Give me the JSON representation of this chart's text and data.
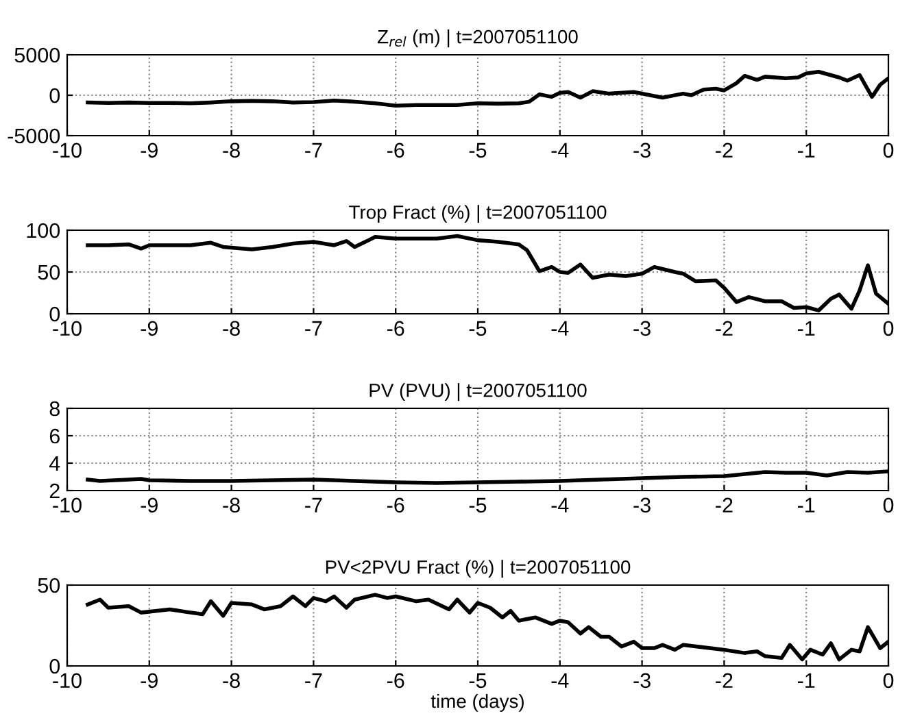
{
  "chart_data": [
    {
      "type": "line",
      "title": "Z$_{rel}$ (m) | t=2007051100",
      "xlim": [
        -10,
        0
      ],
      "xticks": [
        -10,
        -9,
        -8,
        -7,
        -6,
        -5,
        -4,
        -3,
        -2,
        -1,
        0
      ],
      "ylim": [
        -5000,
        5000
      ],
      "yticks": [
        -5000,
        0,
        5000
      ],
      "grid": true,
      "line_style": "solid",
      "series": [
        {
          "color": "#000000",
          "x": [
            -9.75,
            -9.5,
            -9.25,
            -9,
            -8.75,
            -8.5,
            -8.25,
            -8,
            -7.75,
            -7.5,
            -7.25,
            -7,
            -6.75,
            -6.5,
            -6.25,
            -6,
            -5.75,
            -5.5,
            -5.25,
            -5,
            -4.75,
            -4.5,
            -4.375,
            -4.25,
            -4.1,
            -4,
            -3.9,
            -3.75,
            -3.6,
            -3.4,
            -3.1,
            -2.9,
            -2.75,
            -2.5,
            -2.4,
            -2.25,
            -2.1,
            -2,
            -1.85,
            -1.75,
            -1.6,
            -1.5,
            -1.25,
            -1.1,
            -1,
            -0.85,
            -0.6,
            -0.5,
            -0.35,
            -0.2,
            -0.1,
            0
          ],
          "values": [
            -900,
            -950,
            -900,
            -950,
            -950,
            -1000,
            -900,
            -750,
            -700,
            -750,
            -900,
            -850,
            -650,
            -800,
            -1000,
            -1300,
            -1200,
            -1200,
            -1200,
            -1000,
            -1050,
            -1000,
            -800,
            100,
            -200,
            300,
            400,
            -300,
            500,
            200,
            400,
            0,
            -300,
            200,
            0,
            700,
            800,
            600,
            1500,
            2400,
            1900,
            2300,
            2100,
            2200,
            2700,
            2900,
            2200,
            1800,
            2500,
            -200,
            1300,
            2100
          ]
        }
      ]
    },
    {
      "type": "line",
      "title": "Trop Fract (%) | t=2007051100",
      "xlim": [
        -10,
        0
      ],
      "xticks": [
        -10,
        -9,
        -8,
        -7,
        -6,
        -5,
        -4,
        -3,
        -2,
        -1,
        0
      ],
      "ylim": [
        0,
        100
      ],
      "yticks": [
        0,
        50,
        100
      ],
      "grid": true,
      "line_style": "solid",
      "series": [
        {
          "color": "#000000",
          "x": [
            -9.75,
            -9.5,
            -9.25,
            -9.1,
            -9,
            -8.5,
            -8.25,
            -8.1,
            -7.75,
            -7.5,
            -7.25,
            -7,
            -6.75,
            -6.6,
            -6.5,
            -6.35,
            -6.25,
            -6,
            -5.5,
            -5.25,
            -5,
            -4.75,
            -4.5,
            -4.4,
            -4.25,
            -4.1,
            -4,
            -3.9,
            -3.75,
            -3.6,
            -3.4,
            -3.2,
            -3,
            -2.85,
            -2.6,
            -2.5,
            -2.35,
            -2.1,
            -2,
            -1.85,
            -1.7,
            -1.5,
            -1.3,
            -1.15,
            -1,
            -0.85,
            -0.7,
            -0.6,
            -0.45,
            -0.35,
            -0.25,
            -0.15,
            0
          ],
          "values": [
            82,
            82,
            83,
            78,
            82,
            82,
            85,
            80,
            77,
            80,
            84,
            86,
            82,
            87,
            80,
            87,
            92,
            90,
            90,
            93,
            88,
            86,
            83,
            76,
            51,
            56,
            50,
            49,
            59,
            43,
            47,
            45,
            48,
            56,
            50,
            48,
            39,
            40,
            31,
            14,
            20,
            15,
            15,
            7,
            8,
            4,
            18,
            23,
            6,
            28,
            58,
            24,
            12
          ]
        }
      ]
    },
    {
      "type": "line",
      "title": "PV (PVU) | t=2007051100",
      "xlim": [
        -10,
        0
      ],
      "xticks": [
        -10,
        -9,
        -8,
        -7,
        -6,
        -5,
        -4,
        -3,
        -2,
        -1,
        0
      ],
      "ylim": [
        2,
        8
      ],
      "yticks": [
        2,
        4,
        6,
        8
      ],
      "grid": true,
      "line_style": "solid",
      "series": [
        {
          "color": "#000000",
          "x": [
            -9.75,
            -9.6,
            -9.25,
            -9.1,
            -9,
            -8.5,
            -8,
            -7.5,
            -7,
            -6.5,
            -6,
            -5.5,
            -5,
            -4.5,
            -4,
            -3.5,
            -3,
            -2.5,
            -2,
            -1.75,
            -1.5,
            -1.25,
            -1,
            -0.75,
            -0.5,
            -0.25,
            0
          ],
          "values": [
            2.8,
            2.7,
            2.8,
            2.85,
            2.75,
            2.7,
            2.7,
            2.75,
            2.8,
            2.7,
            2.6,
            2.55,
            2.6,
            2.65,
            2.7,
            2.8,
            2.9,
            3.0,
            3.05,
            3.2,
            3.35,
            3.3,
            3.3,
            3.1,
            3.35,
            3.3,
            3.4
          ]
        }
      ]
    },
    {
      "type": "line",
      "title": "PV<2PVU Fract (%) | t=2007051100",
      "xlabel": "time (days)",
      "xlim": [
        -10,
        0
      ],
      "xticks": [
        -10,
        -9,
        -8,
        -7,
        -6,
        -5,
        -4,
        -3,
        -2,
        -1,
        0
      ],
      "ylim": [
        0,
        50
      ],
      "yticks": [
        0,
        50
      ],
      "grid": true,
      "line_style": "solid",
      "series": [
        {
          "color": "#000000",
          "x": [
            -9.75,
            -9.6,
            -9.5,
            -9.25,
            -9.1,
            -8.75,
            -8.5,
            -8.35,
            -8.25,
            -8.1,
            -8,
            -7.75,
            -7.6,
            -7.4,
            -7.25,
            -7.1,
            -7,
            -6.85,
            -6.75,
            -6.6,
            -6.5,
            -6.25,
            -6.1,
            -6,
            -5.75,
            -5.6,
            -5.35,
            -5.25,
            -5.1,
            -5,
            -4.85,
            -4.7,
            -4.6,
            -4.5,
            -4.3,
            -4.1,
            -4,
            -3.9,
            -3.75,
            -3.65,
            -3.5,
            -3.4,
            -3.25,
            -3.1,
            -3,
            -2.85,
            -2.75,
            -2.6,
            -2.5,
            -2,
            -1.75,
            -1.6,
            -1.5,
            -1.3,
            -1.2,
            -1.05,
            -0.95,
            -0.8,
            -0.7,
            -0.6,
            -0.45,
            -0.35,
            -0.25,
            -0.1,
            0
          ],
          "values": [
            38,
            41,
            36,
            37,
            33,
            35,
            33,
            32,
            40,
            31,
            39,
            38,
            35,
            37,
            43,
            37,
            42,
            40,
            43,
            36,
            41,
            44,
            42,
            43,
            40,
            41,
            35,
            41,
            33,
            39,
            36,
            30,
            34,
            28,
            30,
            26,
            28,
            27,
            20,
            24,
            18,
            18,
            12,
            15,
            11,
            11,
            13,
            10,
            13,
            10,
            8,
            9,
            6,
            5,
            13,
            4,
            10,
            7,
            14,
            4,
            10,
            9,
            24,
            11,
            15
          ]
        }
      ]
    }
  ]
}
